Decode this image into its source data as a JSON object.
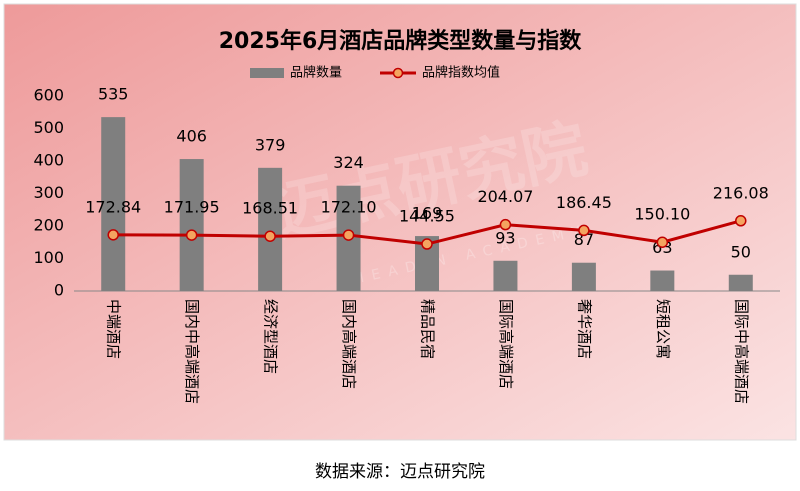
{
  "chart_data": {
    "type": "bar",
    "title": "2025年6月酒店品牌类型数量与指数",
    "categories": [
      "中端酒店",
      "国内中高端酒店",
      "经济型酒店",
      "国内高端酒店",
      "精品民宿",
      "国际高端酒店",
      "奢华酒店",
      "短租公寓",
      "国际中高端酒店"
    ],
    "series": [
      {
        "name": "品牌数量",
        "type": "bar",
        "color": "#7f7f7f",
        "values": [
          535,
          406,
          379,
          324,
          169,
          93,
          87,
          63,
          50
        ]
      },
      {
        "name": "品牌指数均值",
        "type": "line",
        "color": "#c00000",
        "marker_color": "#f4a460",
        "values": [
          172.84,
          171.95,
          168.51,
          172.1,
          144.55,
          204.07,
          186.45,
          150.1,
          216.08
        ],
        "value_labels": [
          "172.84",
          "171.95",
          "168.51",
          "172.10",
          "144.55",
          "204.07",
          "186.45",
          "150.10",
          "216.08"
        ]
      }
    ],
    "ylim": [
      0,
      600
    ],
    "yticks": [
      0,
      100,
      200,
      300,
      400,
      500,
      600
    ],
    "grid": false,
    "legend": "top",
    "watermark": "迈点研究院",
    "watermark_sub": "MEADIN ACADEMY",
    "source": "数据来源：迈点研究院"
  }
}
